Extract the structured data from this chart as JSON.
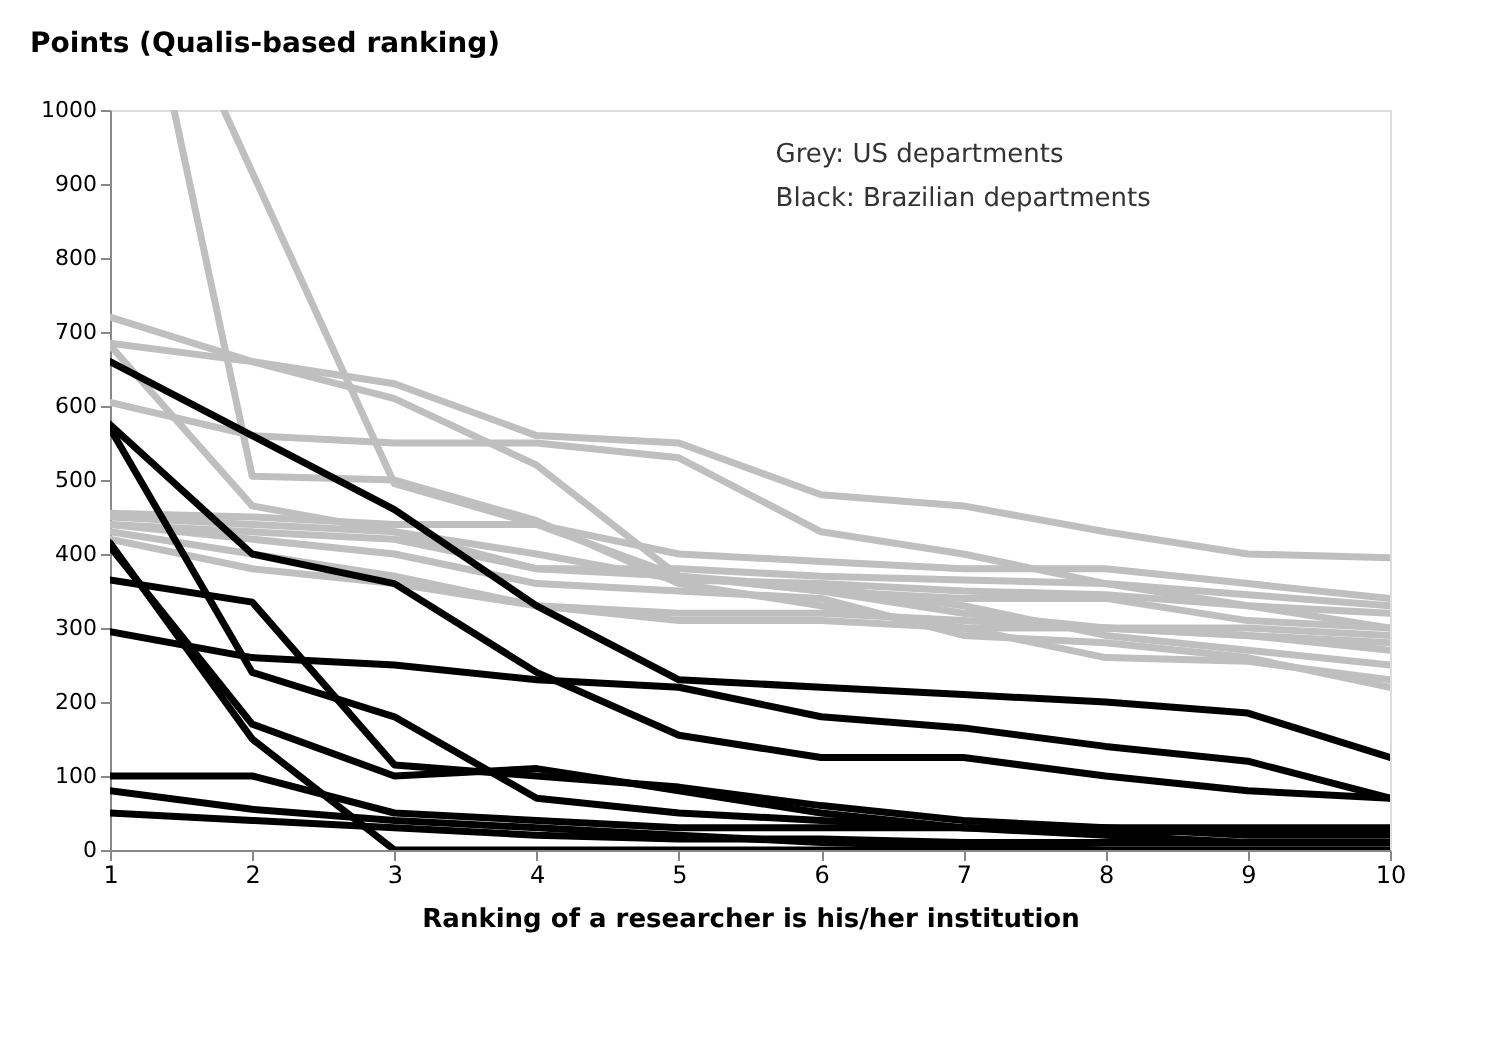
{
  "chart_data": {
    "type": "line",
    "title": "Points (Qualis-based ranking)",
    "xlabel": "Ranking of a researcher is his/her institution",
    "x": [
      1,
      2,
      3,
      4,
      5,
      6,
      7,
      8,
      9,
      10
    ],
    "xlim": [
      1,
      10
    ],
    "xticks": [
      1,
      2,
      3,
      4,
      5,
      6,
      7,
      8,
      9,
      10
    ],
    "ylim": [
      0,
      1000
    ],
    "yticks": [
      0,
      100,
      200,
      300,
      400,
      500,
      600,
      700,
      800,
      900,
      1000
    ],
    "grid": false,
    "marker": "none",
    "line_style": "solid",
    "annotations": [
      "Grey:   US departments",
      "Black:  Brazilian departments"
    ],
    "series": [
      {
        "color": "#bfbfbf",
        "x": [
          1.45,
          2,
          3,
          4,
          5,
          6,
          7,
          8,
          9,
          10
        ],
        "values": [
          1000,
          505,
          500,
          445,
          360,
          330,
          300,
          260,
          255,
          230
        ]
      },
      {
        "color": "#bfbfbf",
        "x": [
          1.8,
          3,
          4,
          5,
          6,
          7,
          8,
          9,
          10
        ],
        "values": [
          1000,
          495,
          440,
          370,
          350,
          320,
          300,
          290,
          270
        ]
      },
      {
        "color": "#bfbfbf",
        "values": [
          720,
          660,
          630,
          560,
          550,
          480,
          465,
          430,
          400,
          395
        ]
      },
      {
        "color": "#bfbfbf",
        "values": [
          685,
          660,
          610,
          520,
          370,
          355,
          330,
          290,
          270,
          250
        ]
      },
      {
        "color": "#bfbfbf",
        "values": [
          605,
          560,
          550,
          550,
          530,
          430,
          400,
          360,
          330,
          300
        ]
      },
      {
        "color": "#bfbfbf",
        "values": [
          682,
          465,
          430,
          400,
          365,
          360,
          350,
          345,
          330,
          320
        ]
      },
      {
        "color": "#bfbfbf",
        "values": [
          455,
          450,
          440,
          440,
          400,
          390,
          380,
          380,
          360,
          340
        ]
      },
      {
        "color": "#bfbfbf",
        "values": [
          440,
          430,
          420,
          380,
          380,
          370,
          365,
          360,
          345,
          330
        ]
      },
      {
        "color": "#bfbfbf",
        "values": [
          430,
          400,
          370,
          330,
          320,
          320,
          310,
          300,
          300,
          290
        ]
      },
      {
        "color": "#bfbfbf",
        "values": [
          420,
          380,
          360,
          330,
          310,
          310,
          300,
          300,
          290,
          280
        ]
      },
      {
        "color": "#bfbfbf",
        "values": [
          440,
          420,
          400,
          360,
          350,
          340,
          290,
          280,
          260,
          220
        ]
      },
      {
        "color": "#bfbfbf",
        "values": [
          450,
          440,
          430,
          380,
          370,
          350,
          340,
          340,
          310,
          300
        ]
      },
      {
        "color": "#000000",
        "values": [
          660,
          560,
          460,
          330,
          230,
          220,
          210,
          200,
          185,
          125
        ]
      },
      {
        "color": "#000000",
        "values": [
          575,
          400,
          360,
          240,
          155,
          125,
          125,
          100,
          80,
          70
        ]
      },
      {
        "color": "#000000",
        "values": [
          570,
          240,
          180,
          70,
          50,
          40,
          30,
          30,
          30,
          30
        ]
      },
      {
        "color": "#000000",
        "values": [
          415,
          150,
          0,
          0,
          0,
          0,
          0,
          0,
          0,
          0
        ]
      },
      {
        "color": "#000000",
        "values": [
          410,
          170,
          100,
          110,
          80,
          50,
          30,
          20,
          10,
          10
        ]
      },
      {
        "color": "#000000",
        "values": [
          365,
          335,
          115,
          100,
          85,
          60,
          40,
          30,
          20,
          20
        ]
      },
      {
        "color": "#000000",
        "values": [
          295,
          260,
          250,
          230,
          220,
          180,
          165,
          140,
          120,
          70
        ]
      },
      {
        "color": "#000000",
        "values": [
          100,
          100,
          50,
          40,
          30,
          30,
          30,
          25,
          25,
          25
        ]
      },
      {
        "color": "#000000",
        "values": [
          80,
          55,
          40,
          30,
          20,
          10,
          5,
          0,
          0,
          0
        ]
      },
      {
        "color": "#000000",
        "values": [
          50,
          40,
          30,
          20,
          15,
          15,
          10,
          10,
          10,
          10
        ]
      }
    ]
  }
}
